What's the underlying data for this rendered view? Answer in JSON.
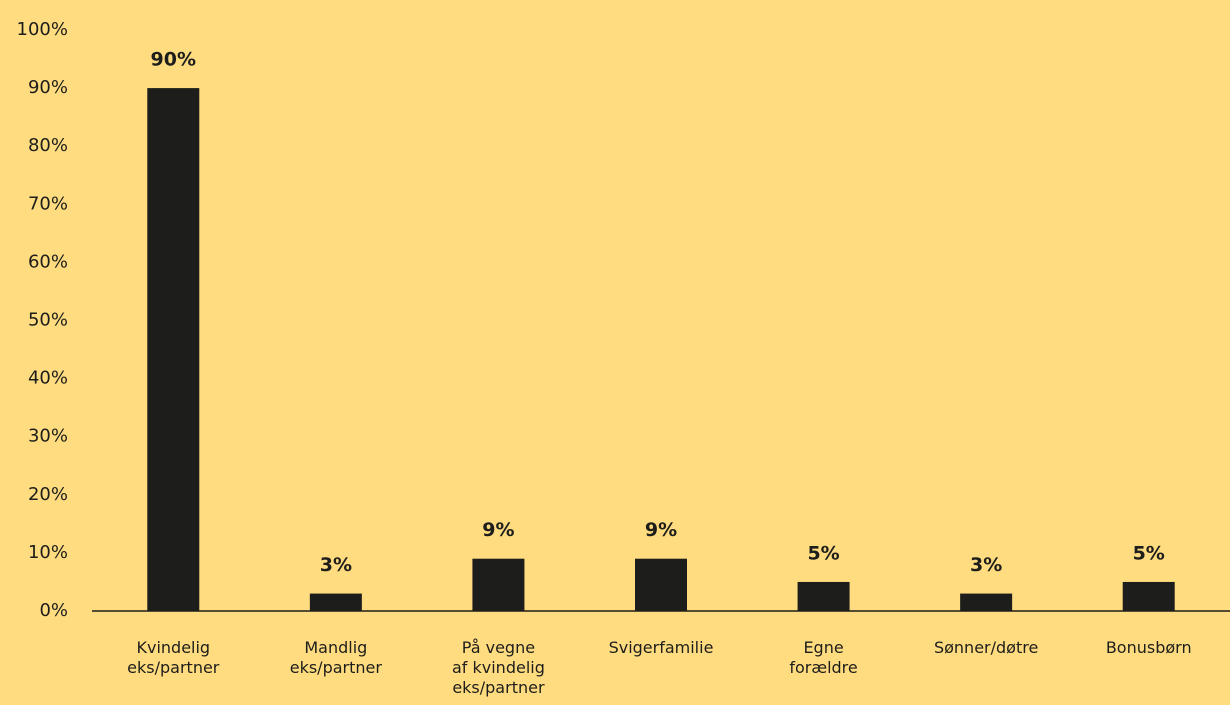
{
  "chart_data": {
    "type": "bar",
    "categories": [
      "Kvindelig\neks/partner",
      "Mandlig\neks/partner",
      "På vegne\naf kvindelig\neks/partner",
      "Svigerfamilie",
      "Egne\nforældre",
      "Sønner/døtre",
      "Bonusbørn"
    ],
    "values": [
      90,
      3,
      9,
      9,
      5,
      3,
      5
    ],
    "value_labels": [
      "90%",
      "3%",
      "9%",
      "9%",
      "5%",
      "3%",
      "5%"
    ],
    "color": "#1d1d1b",
    "ylim": [
      0,
      100
    ],
    "yticks": [
      {
        "value": 0,
        "label": "0%"
      },
      {
        "value": 10,
        "label": "10%"
      },
      {
        "value": 20,
        "label": "20%"
      },
      {
        "value": 30,
        "label": "30%"
      },
      {
        "value": 40,
        "label": "40%"
      },
      {
        "value": 50,
        "label": "50%"
      },
      {
        "value": 60,
        "label": "60%"
      },
      {
        "value": 70,
        "label": "70%"
      },
      {
        "value": 80,
        "label": "80%"
      },
      {
        "value": 90,
        "label": "90%"
      },
      {
        "value": 100,
        "label": "100%"
      }
    ],
    "grid": false
  }
}
